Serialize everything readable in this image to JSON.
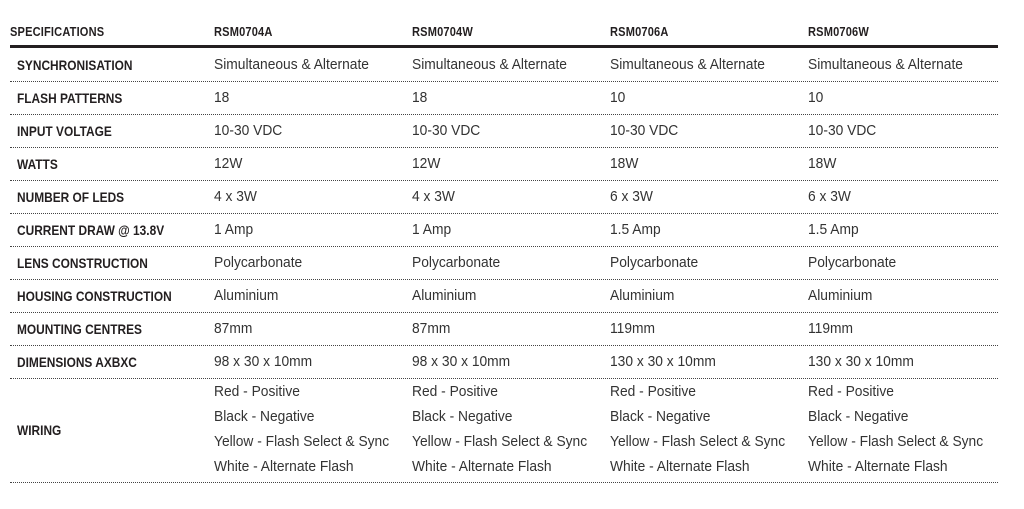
{
  "table": {
    "columns": [
      "SPECIFICATIONS",
      "RSM0704A",
      "RSM0704W",
      "RSM0706A",
      "RSM0706W"
    ],
    "rows": [
      {
        "label": "SYNCHRONISATION",
        "cells": [
          "Simultaneous & Alternate",
          "Simultaneous & Alternate",
          "Simultaneous & Alternate",
          "Simultaneous & Alternate"
        ]
      },
      {
        "label": "FLASH PATTERNS",
        "cells": [
          "18",
          "18",
          "10",
          "10"
        ]
      },
      {
        "label": "INPUT VOLTAGE",
        "cells": [
          "10-30 VDC",
          "10-30 VDC",
          "10-30 VDC",
          "10-30 VDC"
        ]
      },
      {
        "label": "WATTS",
        "cells": [
          "12W",
          "12W",
          "18W",
          "18W"
        ]
      },
      {
        "label": "NUMBER OF LEDS",
        "cells": [
          "4 x 3W",
          "4 x 3W",
          "6 x 3W",
          "6 x 3W"
        ]
      },
      {
        "label": "CURRENT DRAW @ 13.8V",
        "cells": [
          "1 Amp",
          "1 Amp",
          "1.5 Amp",
          "1.5 Amp"
        ]
      },
      {
        "label": "LENS CONSTRUCTION",
        "cells": [
          "Polycarbonate",
          "Polycarbonate",
          "Polycarbonate",
          "Polycarbonate"
        ]
      },
      {
        "label": "HOUSING CONSTRUCTION",
        "cells": [
          "Aluminium",
          "Aluminium",
          "Aluminium",
          "Aluminium"
        ]
      },
      {
        "label": "MOUNTING CENTRES",
        "cells": [
          "87mm",
          "87mm",
          "119mm",
          "119mm"
        ]
      },
      {
        "label": "DIMENSIONS AXBXC",
        "cells": [
          "98 x 30 x 10mm",
          "98 x 30 x 10mm",
          "130 x 30 x 10mm",
          "130 x 30 x 10mm"
        ]
      },
      {
        "label": "WIRING",
        "cells": [
          [
            "Red - Positive",
            "Black - Negative",
            "Yellow - Flash Select & Sync",
            "White - Alternate Flash"
          ],
          [
            "Red - Positive",
            "Black - Negative",
            "Yellow - Flash Select & Sync",
            "White - Alternate Flash"
          ],
          [
            "Red - Positive",
            "Black - Negative",
            "Yellow - Flash Select & Sync",
            "White - Alternate Flash"
          ],
          [
            "Red - Positive",
            "Black - Negative",
            "Yellow - Flash Select & Sync",
            "White - Alternate Flash"
          ]
        ]
      }
    ]
  }
}
